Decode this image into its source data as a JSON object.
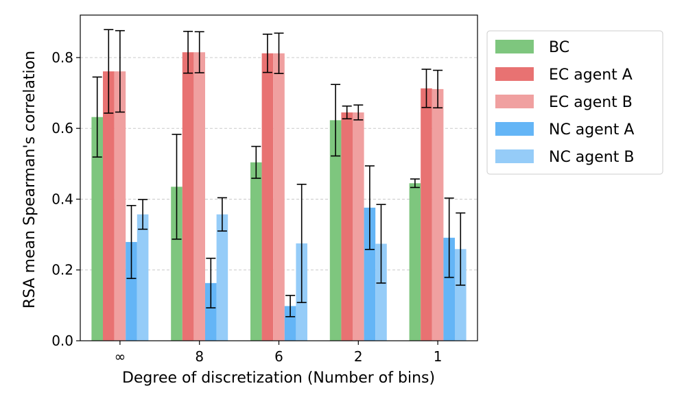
{
  "chart_data": {
    "type": "bar",
    "title": "",
    "xlabel": "Degree of discretization (Number of bins)",
    "ylabel": "RSA mean Spearman's correlation",
    "ylim": [
      0,
      0.92
    ],
    "yticks": [
      "0.0",
      "0.2",
      "0.4",
      "0.6",
      "0.8"
    ],
    "grid": "horizontal dashed",
    "legend_position": "outside right, top",
    "categories": [
      "∞",
      "8",
      "6",
      "2",
      "1"
    ],
    "series": [
      {
        "name": "BC",
        "color": "#7ec67e",
        "values": [
          0.632,
          0.435,
          0.504,
          0.623,
          0.445
        ],
        "errors": [
          0.113,
          0.148,
          0.045,
          0.101,
          0.012
        ]
      },
      {
        "name": "EC agent A",
        "color": "#e87272",
        "values": [
          0.761,
          0.815,
          0.812,
          0.645,
          0.713
        ],
        "errors": [
          0.118,
          0.059,
          0.054,
          0.018,
          0.054
        ]
      },
      {
        "name": "EC agent B",
        "color": "#f0a0a0",
        "values": [
          0.761,
          0.815,
          0.812,
          0.645,
          0.711
        ],
        "errors": [
          0.115,
          0.058,
          0.057,
          0.021,
          0.053
        ]
      },
      {
        "name": "NC agent A",
        "color": "#64b5f6",
        "values": [
          0.279,
          0.163,
          0.098,
          0.376,
          0.291
        ],
        "errors": [
          0.103,
          0.07,
          0.03,
          0.118,
          0.112
        ]
      },
      {
        "name": "NC agent B",
        "color": "#95ccf8",
        "values": [
          0.357,
          0.357,
          0.275,
          0.274,
          0.259
        ],
        "errors": [
          0.042,
          0.047,
          0.167,
          0.111,
          0.102
        ]
      }
    ]
  }
}
